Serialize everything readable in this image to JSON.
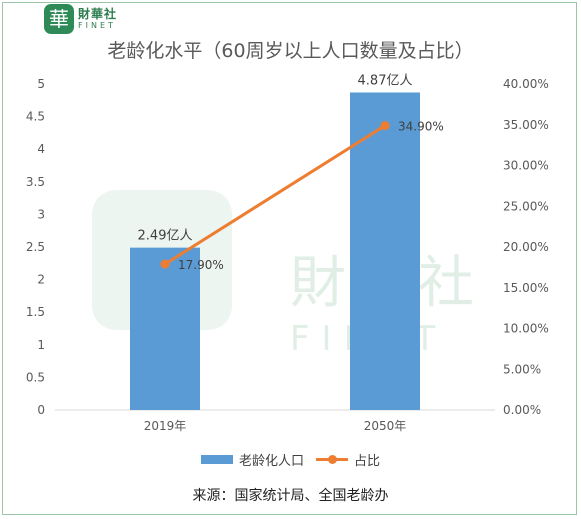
{
  "logo": {
    "cn": "財華社",
    "en": "FINET",
    "mark": "華"
  },
  "watermark": {
    "cn": "財華社",
    "en": "FINET"
  },
  "chart_data": {
    "type": "bar",
    "title": "老龄化水平（60周岁以上人口数量及占比）",
    "categories": [
      "2019年",
      "2050年"
    ],
    "series": [
      {
        "name": "老龄化人口",
        "type": "bar",
        "axis": "left",
        "values": [
          2.49,
          4.87
        ],
        "labels": [
          "2.49亿人",
          "4.87亿人"
        ],
        "color": "#5b9bd5"
      },
      {
        "name": "占比",
        "type": "line",
        "axis": "right",
        "values": [
          17.9,
          34.9
        ],
        "labels": [
          "17.90%",
          "34.90%"
        ],
        "color": "#ed7d31"
      }
    ],
    "y_left": {
      "ylim": [
        0,
        5
      ],
      "ticks": [
        "0",
        "0.5",
        "1",
        "1.5",
        "2",
        "2.5",
        "3",
        "3.5",
        "4",
        "4.5",
        "5"
      ]
    },
    "y_right": {
      "ylim": [
        0,
        40
      ],
      "ticks": [
        "0.00%",
        "5.00%",
        "10.00%",
        "15.00%",
        "20.00%",
        "25.00%",
        "30.00%",
        "35.00%",
        "40.00%"
      ]
    },
    "grid": false,
    "legend_position": "bottom"
  },
  "legend": {
    "bar_label": "老龄化人口",
    "line_label": "占比"
  },
  "source": "来源：国家统计局、全国老龄办"
}
